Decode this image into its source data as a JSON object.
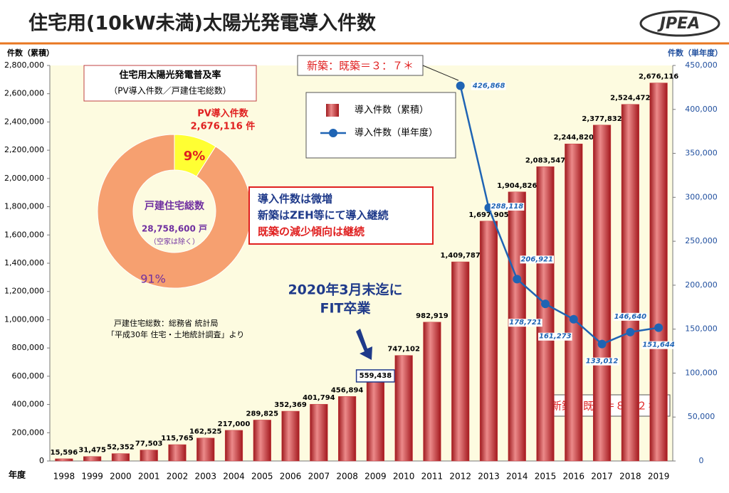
{
  "chart_data": [
    {
      "type": "bar",
      "title": "住宅用(10kW未満)太陽光発電導入件数",
      "y_label": "件数（累積）",
      "y2_label": "件数（単年度）",
      "x_label": "年度",
      "logo": "JPEA",
      "categories": [
        "1998",
        "1999",
        "2000",
        "2001",
        "2002",
        "2003",
        "2004",
        "2005",
        "2006",
        "2007",
        "2008",
        "2009",
        "2010",
        "2011",
        "2012",
        "2013",
        "2014",
        "2015",
        "2016",
        "2017",
        "2018",
        "2019"
      ],
      "series": [
        {
          "name": "導入件数（累積）",
          "type": "bar",
          "color": "#c8363a",
          "values": [
            15596,
            31475,
            52352,
            77503,
            115765,
            162525,
            217000,
            289825,
            352369,
            401794,
            456894,
            559438,
            747102,
            982919,
            1409787,
            1697905,
            1904826,
            2083547,
            2244820,
            2377832,
            2524472,
            2676116
          ],
          "value_labels": [
            "15,596",
            "31,475",
            "52,352",
            "77,503",
            "115,765",
            "162,525",
            "217,000",
            "289,825",
            "352,369",
            "401,794",
            "456,894",
            "559,438",
            "747,102",
            "982,919",
            "1,409,787",
            "1,697,905",
            "1,904,826",
            "2,083,547",
            "2,244,820",
            "2,377,832",
            "2,524,472",
            "2,676,116"
          ]
        },
        {
          "name": "導入件数（単年度）",
          "type": "line",
          "axis": "y2",
          "color": "#1f64b4",
          "values": [
            null,
            null,
            null,
            null,
            null,
            null,
            null,
            null,
            null,
            null,
            null,
            null,
            null,
            null,
            426868,
            288118,
            206921,
            178721,
            161273,
            133012,
            146640,
            151644
          ],
          "value_labels": [
            null,
            null,
            null,
            null,
            null,
            null,
            null,
            null,
            null,
            null,
            null,
            null,
            null,
            null,
            "426,868",
            "288,118",
            "206,921",
            "178,721",
            "161,273",
            "133,012",
            "146,640",
            "151,644"
          ]
        }
      ],
      "ylim": [
        0,
        2800000
      ],
      "yticks": [
        0,
        {
          "value": 200000,
          "label": "200,000"
        },
        {
          "value": 400000,
          "label": "400,000"
        },
        {
          "value": 600000,
          "label": "600,000"
        },
        {
          "value": 800000,
          "label": "800,000"
        },
        {
          "value": 1000000,
          "label": "1,000,000"
        },
        {
          "value": 1200000,
          "label": "1,200,000"
        },
        {
          "value": 1400000,
          "label": "1,400,000"
        },
        {
          "value": 1600000,
          "label": "1,600,000"
        },
        {
          "value": 1800000,
          "label": "1,800,000"
        },
        {
          "value": 2000000,
          "label": "2,000,000"
        },
        {
          "value": 2200000,
          "label": "2,200,000"
        },
        {
          "value": 2400000,
          "label": "2,400,000"
        },
        {
          "value": 2600000,
          "label": "2,600,000"
        },
        {
          "value": 2800000,
          "label": "2,800,000"
        }
      ],
      "y2lim": [
        0,
        450000
      ],
      "y2ticks": [
        0,
        {
          "value": 50000,
          "label": "50,000"
        },
        {
          "value": 100000,
          "label": "100,000"
        },
        {
          "value": 150000,
          "label": "150,000"
        },
        {
          "value": 200000,
          "label": "200,000"
        },
        {
          "value": 250000,
          "label": "250,000"
        },
        {
          "value": 300000,
          "label": "300,000"
        },
        {
          "value": 350000,
          "label": "350,000"
        },
        {
          "value": 400000,
          "label": "400,000"
        },
        {
          "value": 450000,
          "label": "450,000"
        }
      ],
      "grid": false,
      "annotations": {
        "ratio_2012": "新築：既築＝３：７＊",
        "ratio_2019": "新築：既築＝８：２＊",
        "fit": [
          "2020年3月末迄に",
          "FIT卒業"
        ],
        "comment": [
          "導入件数は微増",
          "新築はZEH等にて導入継続",
          "既築の減少傾向は継続"
        ]
      }
    },
    {
      "type": "pie",
      "title": "住宅用太陽光発電普及率",
      "subtitle": "（PV導入件数／戸建住宅総数）",
      "categories": [
        "PV導入件数",
        "戸建住宅総数"
      ],
      "values": [
        9,
        91
      ],
      "value_labels": [
        "9%",
        "91%"
      ],
      "colors": [
        "#ffff33",
        "#f6a070"
      ],
      "pv_count": "2,676,116 件",
      "house_count": "28,758,600 戸",
      "house_note": "（空家は除く）",
      "source": [
        "戸建住宅総数：総務省 統計局",
        "「平成30年 住宅・土地統計調査」より"
      ]
    }
  ]
}
